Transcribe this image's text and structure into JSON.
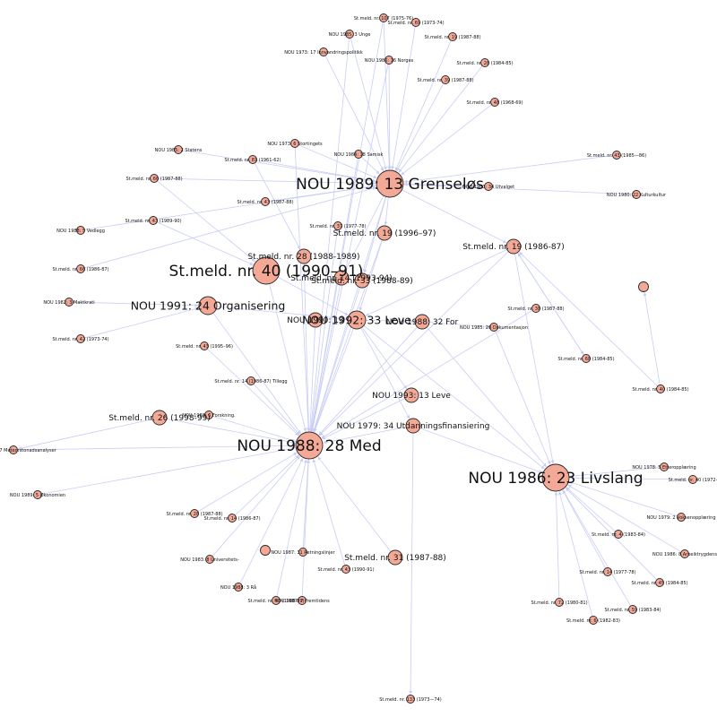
{
  "colors": {
    "node_fill": "#f4a896",
    "node_stroke": "#2a2a2a",
    "edge": "#c9cdf5",
    "label": "#111111",
    "background": "#ffffff"
  },
  "nodes": [
    {
      "id": "n_nou198928",
      "label": "NOU 1989: 13 Grenseløs",
      "size": "xl"
    },
    {
      "id": "n_nou198828",
      "label": "NOU 1988: 28 Med",
      "size": "xl"
    },
    {
      "id": "n_nou198623",
      "label": "NOU 1986: 23 Livslang",
      "size": "xl"
    },
    {
      "id": "n_stm40",
      "label": "St.meld. nr. 40 (1990–91)",
      "size": "xl"
    },
    {
      "id": "n_nou199233",
      "label": "NOU 1992: 33 Leve",
      "size": "lg"
    },
    {
      "id": "n_nou199124",
      "label": "NOU 1991: 24 Organisering",
      "size": "lg"
    },
    {
      "id": "n_stm19b",
      "label": "St.meld. nr. 19 (1986-87)",
      "size": "md"
    },
    {
      "id": "n_stm28",
      "label": "St.meld. nr. 28 (1988-1989)",
      "size": "md"
    },
    {
      "id": "n_stm14",
      "label": "St.meld. nr. 14 (1993-94)",
      "size": "md"
    },
    {
      "id": "n_stm33",
      "label": "St.meld. nr. 33 (1988-89)",
      "size": "md"
    },
    {
      "id": "n_stm19a",
      "label": "St.meld. nr. 19 (1996–97)",
      "size": "md"
    },
    {
      "id": "n_nou198832",
      "label": "NOU 1988: 32 For",
      "size": "md"
    },
    {
      "id": "n_nou199013",
      "label": "NOU 1990: 13",
      "size": "md"
    },
    {
      "id": "n_stm26",
      "label": "St.meld. nr. 26 (1998-99)",
      "size": "md"
    },
    {
      "id": "n_stm31",
      "label": "St.meld. nr. 31 (1987-88)",
      "size": "md"
    },
    {
      "id": "n_nou199313",
      "label": "NOU 1993: 13 Leve",
      "size": "md"
    },
    {
      "id": "n_nou197934",
      "label": "NOU 1979: 34 Utdanningsfinansiering",
      "size": "md"
    },
    {
      "id": "n_t_lonely",
      "label": "",
      "size": "sm"
    },
    {
      "id": "n_t_lonely2",
      "label": "",
      "size": "sm"
    },
    {
      "id": "n_a1",
      "label": "St.meld. nr. 107 (1975-76)",
      "size": "xs"
    },
    {
      "id": "n_a2",
      "label": "St.meld. nr. 69 (1973-74)",
      "size": "xs"
    },
    {
      "id": "n_a3",
      "label": "NOU 1985: 3 Unge",
      "size": "xs"
    },
    {
      "id": "n_a4",
      "label": "St.meld. nr. 19 (1987-88)",
      "size": "xs"
    },
    {
      "id": "n_a5",
      "label": "NOU 1973: 17 Innvandringspolitikk",
      "size": "xs"
    },
    {
      "id": "n_a6",
      "label": "NOU 1986: 16 Norges",
      "size": "xs"
    },
    {
      "id": "n_a7",
      "label": "St.meld. nr. 28 (1984-85)",
      "size": "xs"
    },
    {
      "id": "n_a8",
      "label": "St.meld. nr. 39 (1987-88)",
      "size": "xs"
    },
    {
      "id": "n_a9",
      "label": "St.meld. nr. 48 (1968-69)",
      "size": "xs"
    },
    {
      "id": "n_b1",
      "label": "NOU 1985: 2 Statens",
      "size": "xs"
    },
    {
      "id": "n_b2",
      "label": "NOU 1973: 6 Stortingets",
      "size": "xs"
    },
    {
      "id": "n_b3",
      "label": "St.meld. nr. 81 (1961-62)",
      "size": "xs"
    },
    {
      "id": "n_b4",
      "label": "NOU 1984: 18 Samisk",
      "size": "xs"
    },
    {
      "id": "n_b5",
      "label": "St.meld. nr. 66 (1987-88)",
      "size": "xs"
    },
    {
      "id": "n_b6",
      "label": "St.meld. nr. 43 (1987-88)",
      "size": "xs"
    },
    {
      "id": "n_b7",
      "label": "St.meld. nr. 43 (1989-90)",
      "size": "xs"
    },
    {
      "id": "n_b8",
      "label": "St.meld. nr. 37 (1977-78)",
      "size": "xs"
    },
    {
      "id": "n_b9",
      "label": "NOU 1983: 34 Utvalget",
      "size": "xs"
    },
    {
      "id": "n_c1",
      "label": "NOU 1988: 5 Vedlegg",
      "size": "xs"
    },
    {
      "id": "n_c2",
      "label": "St.meld. nr. 66 (1986-87)",
      "size": "xs"
    },
    {
      "id": "n_c3",
      "label": "NOU 1982: 3 Maktkrati",
      "size": "xs"
    },
    {
      "id": "n_c4",
      "label": "St.meld. nr. 42 (1973-74)",
      "size": "xs"
    },
    {
      "id": "n_c5",
      "label": "St.meld. nr. 43 (1995–96)",
      "size": "xs"
    },
    {
      "id": "n_c6",
      "label": "St.meld. nr. 14 (1986-87) Tillegg",
      "size": "xs"
    },
    {
      "id": "n_c7",
      "label": "NOU 1988: 6 Forskning.",
      "size": "xs"
    },
    {
      "id": "n_c8",
      "label": "St.meld. nr. 38 (1987-88)",
      "size": "xs"
    },
    {
      "id": "n_d1",
      "label": "St.meld. nr. 43 (1985—86)",
      "size": "xs"
    },
    {
      "id": "n_d2",
      "label": "NOU 1980: 22 Kulturkultur",
      "size": "xs"
    },
    {
      "id": "n_d3",
      "label": "NOU 1985: 20 Dokumentasjon",
      "size": "xs"
    },
    {
      "id": "n_d4",
      "label": "St.meld. nr. 68 (1984-85)",
      "size": "xs"
    },
    {
      "id": "n_d5",
      "label": "St.meld. nr. 40 (1984-85)",
      "size": "xs"
    },
    {
      "id": "n_e1",
      "label": "NOU 1987: 27 Meteorstonadsanalyser",
      "size": "xs"
    },
    {
      "id": "n_e2",
      "label": "NOU 1989: 5 Økonomien",
      "size": "xs"
    },
    {
      "id": "n_e3",
      "label": "St.meld. nr. 28 (1987-88)",
      "size": "xs"
    },
    {
      "id": "n_e4",
      "label": "St.meld. nr. 14 (1986-87)",
      "size": "xs"
    },
    {
      "id": "n_e5",
      "label": "NOU 1983: 8 Universitets-",
      "size": "xs"
    },
    {
      "id": "n_e6",
      "label": "NOU 1987: 31 Retningslinjer",
      "size": "xs"
    },
    {
      "id": "n_e7",
      "label": "NOU 1988: 3 Rå",
      "size": "xs"
    },
    {
      "id": "n_e8",
      "label": "St.meld. nr. 43 (1990-91)",
      "size": "xs"
    },
    {
      "id": "n_e9",
      "label": "St.meld. nr. 43 (1988-89)",
      "size": "xs"
    },
    {
      "id": "n_e10",
      "label": "NOU 1987: 7 Fremtidens",
      "size": "xs"
    },
    {
      "id": "n_e11",
      "label": "St.meld. nr. 133 (1973—74)",
      "size": "xs"
    },
    {
      "id": "n_f1",
      "label": "NOU 1978: 5 Etteropplæring",
      "size": "xs"
    },
    {
      "id": "n_f2",
      "label": "St.meld. nr. 40 (1972-",
      "size": "xs"
    },
    {
      "id": "n_f3",
      "label": "NOU 1979: 2 Voksenopplæring",
      "size": "xs"
    },
    {
      "id": "n_f4",
      "label": "St.meld. nr. 4 (1983-84)",
      "size": "xs"
    },
    {
      "id": "n_f5",
      "label": "NOU 1986: 8 Arbeiktrygdens",
      "size": "xs"
    },
    {
      "id": "n_f6",
      "label": "St.meld. nr. 14 (1977-78)",
      "size": "xs"
    },
    {
      "id": "n_f7",
      "label": "St.meld. nr. 45 (1984-85)",
      "size": "xs"
    },
    {
      "id": "n_f8",
      "label": "St.meld. nr. 72 (1980-81)",
      "size": "xs"
    },
    {
      "id": "n_f9",
      "label": "St.meld. nr. 59 (1983-84)",
      "size": "xs"
    },
    {
      "id": "n_f10",
      "label": "St.meld. nr. 6 (1982-83)",
      "size": "xs"
    }
  ]
}
